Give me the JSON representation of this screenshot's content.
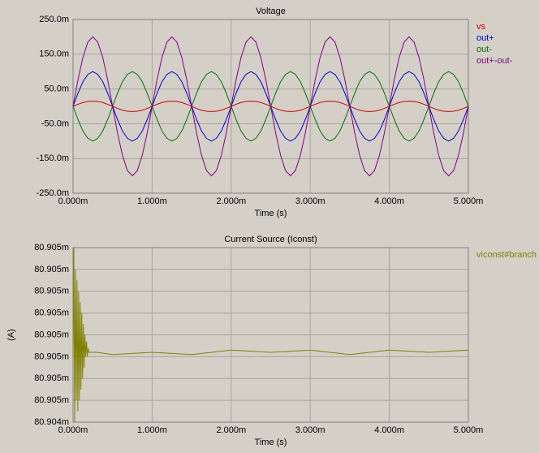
{
  "chart_data": [
    {
      "type": "line",
      "title": "Voltage",
      "xlabel": "Time (s)",
      "grid": true,
      "legend": "right",
      "xlim": [
        0,
        0.005
      ],
      "ylim": [
        -0.25,
        0.25
      ],
      "xticks": [
        {
          "value": 0,
          "label": "0.000m"
        },
        {
          "value": 0.001,
          "label": "1.000m"
        },
        {
          "value": 0.002,
          "label": "2.000m"
        },
        {
          "value": 0.003,
          "label": "3.000m"
        },
        {
          "value": 0.004,
          "label": "4.000m"
        },
        {
          "value": 0.005,
          "label": "5.000m"
        }
      ],
      "yticks": [
        {
          "value": 0.25,
          "label": "250.0m"
        },
        {
          "value": 0.15,
          "label": "150.0m"
        },
        {
          "value": 0.05,
          "label": "50.0m"
        },
        {
          "value": -0.05,
          "label": "-50.0m"
        },
        {
          "value": -0.15,
          "label": "-150.0m"
        },
        {
          "value": -0.25,
          "label": "-250.0m"
        }
      ],
      "x": [
        0,
        6.25e-05,
        0.000125,
        0.0001875,
        0.00025,
        0.0003125,
        0.000375,
        0.0004375,
        0.0005,
        0.0005625,
        0.000625,
        0.0006875,
        0.00075,
        0.0008125,
        0.000875,
        0.0009375,
        0.001,
        0.0010625,
        0.001125,
        0.0011875,
        0.00125,
        0.0013125,
        0.001375,
        0.0014375,
        0.0015,
        0.0015625,
        0.001625,
        0.0016875,
        0.00175,
        0.0018125,
        0.001875,
        0.0019375,
        0.002,
        0.0020625,
        0.002125,
        0.0021875,
        0.00225,
        0.0023125,
        0.002375,
        0.0024375,
        0.0025,
        0.0025625,
        0.002625,
        0.0026875,
        0.00275,
        0.0028125,
        0.002875,
        0.0029375,
        0.003,
        0.0030625,
        0.003125,
        0.0031875,
        0.00325,
        0.0033125,
        0.003375,
        0.0034375,
        0.0035,
        0.0035625,
        0.003625,
        0.0036875,
        0.00375,
        0.0038125,
        0.003875,
        0.0039375,
        0.004,
        0.0040625,
        0.004125,
        0.0041875,
        0.00425,
        0.0043125,
        0.004375,
        0.0044375,
        0.0045,
        0.0045625,
        0.004625,
        0.0046875,
        0.00475,
        0.0048125,
        0.004875,
        0.0049375,
        0.005
      ],
      "series": [
        {
          "name": "vs",
          "color": "#d00000",
          "values": [
            0,
            0.006,
            0.011,
            0.014,
            0.015,
            0.014,
            0.011,
            0.006,
            0,
            -0.006,
            -0.011,
            -0.014,
            -0.015,
            -0.014,
            -0.011,
            -0.006,
            0,
            0.006,
            0.011,
            0.014,
            0.015,
            0.014,
            0.011,
            0.006,
            0,
            -0.006,
            -0.011,
            -0.014,
            -0.015,
            -0.014,
            -0.011,
            -0.006,
            0,
            0.006,
            0.011,
            0.014,
            0.015,
            0.014,
            0.011,
            0.006,
            0,
            -0.006,
            -0.011,
            -0.014,
            -0.015,
            -0.014,
            -0.011,
            -0.006,
            0,
            0.006,
            0.011,
            0.014,
            0.015,
            0.014,
            0.011,
            0.006,
            0,
            -0.006,
            -0.011,
            -0.014,
            -0.015,
            -0.014,
            -0.011,
            -0.006,
            0,
            0.006,
            0.011,
            0.014,
            0.015,
            0.014,
            0.011,
            0.006,
            0,
            -0.006,
            -0.011,
            -0.014,
            -0.015,
            -0.014,
            -0.011,
            -0.006,
            0
          ]
        },
        {
          "name": "out+",
          "color": "#0000d0",
          "values": [
            0,
            0.038,
            0.071,
            0.092,
            0.1,
            0.092,
            0.071,
            0.038,
            0,
            -0.038,
            -0.071,
            -0.092,
            -0.1,
            -0.092,
            -0.071,
            -0.038,
            0,
            0.038,
            0.071,
            0.092,
            0.1,
            0.092,
            0.071,
            0.038,
            0,
            -0.038,
            -0.071,
            -0.092,
            -0.1,
            -0.092,
            -0.071,
            -0.038,
            0,
            0.038,
            0.071,
            0.092,
            0.1,
            0.092,
            0.071,
            0.038,
            0,
            -0.038,
            -0.071,
            -0.092,
            -0.1,
            -0.092,
            -0.071,
            -0.038,
            0,
            0.038,
            0.071,
            0.092,
            0.1,
            0.092,
            0.071,
            0.038,
            0,
            -0.038,
            -0.071,
            -0.092,
            -0.1,
            -0.092,
            -0.071,
            -0.038,
            0,
            0.038,
            0.071,
            0.092,
            0.1,
            0.092,
            0.071,
            0.038,
            0,
            -0.038,
            -0.071,
            -0.092,
            -0.1,
            -0.092,
            -0.071,
            -0.038,
            0
          ]
        },
        {
          "name": "out-",
          "color": "#007000",
          "values": [
            0,
            -0.038,
            -0.071,
            -0.092,
            -0.1,
            -0.092,
            -0.071,
            -0.038,
            0,
            0.038,
            0.071,
            0.092,
            0.1,
            0.092,
            0.071,
            0.038,
            0,
            -0.038,
            -0.071,
            -0.092,
            -0.1,
            -0.092,
            -0.071,
            -0.038,
            0,
            0.038,
            0.071,
            0.092,
            0.1,
            0.092,
            0.071,
            0.038,
            0,
            -0.038,
            -0.071,
            -0.092,
            -0.1,
            -0.092,
            -0.071,
            -0.038,
            0,
            0.038,
            0.071,
            0.092,
            0.1,
            0.092,
            0.071,
            0.038,
            0,
            -0.038,
            -0.071,
            -0.092,
            -0.1,
            -0.092,
            -0.071,
            -0.038,
            0,
            0.038,
            0.071,
            0.092,
            0.1,
            0.092,
            0.071,
            0.038,
            0,
            -0.038,
            -0.071,
            -0.092,
            -0.1,
            -0.092,
            -0.071,
            -0.038,
            0,
            0.038,
            0.071,
            0.092,
            0.1,
            0.092,
            0.071,
            0.038,
            0
          ]
        },
        {
          "name": "out+-out-",
          "color": "#800080",
          "values": [
            0,
            0.077,
            0.141,
            0.185,
            0.2,
            0.185,
            0.141,
            0.077,
            0,
            -0.077,
            -0.141,
            -0.185,
            -0.2,
            -0.185,
            -0.141,
            -0.077,
            0,
            0.077,
            0.141,
            0.185,
            0.2,
            0.185,
            0.141,
            0.077,
            0,
            -0.077,
            -0.141,
            -0.185,
            -0.2,
            -0.185,
            -0.141,
            -0.077,
            0,
            0.077,
            0.141,
            0.185,
            0.2,
            0.185,
            0.141,
            0.077,
            0,
            -0.077,
            -0.141,
            -0.185,
            -0.2,
            -0.185,
            -0.141,
            -0.077,
            0,
            0.077,
            0.141,
            0.185,
            0.2,
            0.185,
            0.141,
            0.077,
            0,
            -0.077,
            -0.141,
            -0.185,
            -0.2,
            -0.185,
            -0.141,
            -0.077,
            0,
            0.077,
            0.141,
            0.185,
            0.2,
            0.185,
            0.141,
            0.077,
            0,
            -0.077,
            -0.141,
            -0.185,
            -0.2,
            -0.185,
            -0.141,
            -0.077,
            0
          ]
        }
      ]
    },
    {
      "type": "line",
      "title": "Current Source (Iconst)",
      "xlabel": "Time (s)",
      "ylabel": "(A)",
      "grid": true,
      "legend": "right",
      "xlim": [
        0,
        0.005
      ],
      "ylim": [
        0.0809044,
        0.0809052
      ],
      "xticks": [
        {
          "value": 0,
          "label": "0.000m"
        },
        {
          "value": 0.001,
          "label": "1.000m"
        },
        {
          "value": 0.002,
          "label": "2.000m"
        },
        {
          "value": 0.003,
          "label": "3.000m"
        },
        {
          "value": 0.004,
          "label": "4.000m"
        },
        {
          "value": 0.005,
          "label": "5.000m"
        }
      ],
      "yticks": [
        {
          "value": 0.0809052,
          "label": "80.905m"
        },
        {
          "value": 0.0809051,
          "label": "80.905m"
        },
        {
          "value": 0.080905,
          "label": "80.905m"
        },
        {
          "value": 0.0809049,
          "label": "80.905m"
        },
        {
          "value": 0.0809048,
          "label": "80.905m"
        },
        {
          "value": 0.0809047,
          "label": "80.905m"
        },
        {
          "value": 0.0809046,
          "label": "80.905m"
        },
        {
          "value": 0.0809045,
          "label": "80.905m"
        },
        {
          "value": 0.0809044,
          "label": "80.904m"
        }
      ],
      "x": [
        0,
        1e-05,
        2e-05,
        3e-05,
        4e-05,
        5e-05,
        6e-05,
        7e-05,
        8e-05,
        9e-05,
        0.0001,
        0.00011,
        0.00012,
        0.00013,
        0.00014,
        0.00015,
        0.00016,
        0.00017,
        0.00018,
        0.00019,
        0.0002,
        0.0003,
        0.0005,
        0.001,
        0.0015,
        0.002,
        0.0025,
        0.003,
        0.0035,
        0.004,
        0.0045,
        0.005
      ],
      "series": [
        {
          "name": "viconst#branch",
          "color": "#808000",
          "values": [
            0.0809047,
            0.0809052,
            0.0809044,
            0.0809051,
            0.0809045,
            0.08090505,
            0.08090445,
            0.080905,
            0.0809045,
            0.08090495,
            0.08090455,
            0.0809049,
            0.0809046,
            0.08090485,
            0.08090465,
            0.0809048,
            0.0809047,
            0.08090477,
            0.0809047,
            0.08090474,
            0.08090472,
            0.08090472,
            0.08090471,
            0.08090472,
            0.08090471,
            0.08090473,
            0.08090472,
            0.08090473,
            0.08090471,
            0.08090473,
            0.08090472,
            0.08090473
          ]
        }
      ]
    }
  ]
}
